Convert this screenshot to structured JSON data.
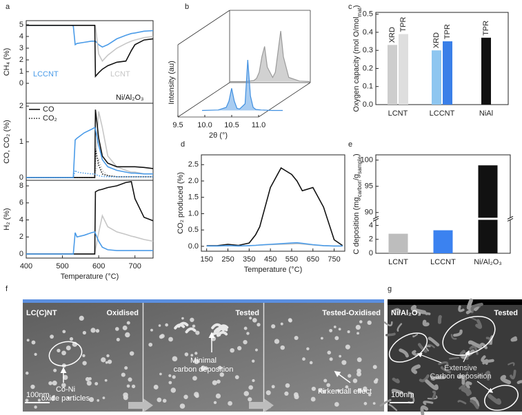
{
  "panel_labels": [
    "a",
    "b",
    "c",
    "d",
    "e",
    "f",
    "g"
  ],
  "chart_data": [
    {
      "type": "line",
      "ylabel": "CH₄ (%)",
      "xlim": [
        400,
        750
      ],
      "ylim": [
        -1.7,
        5.35
      ],
      "yticks": [
        0,
        1,
        2,
        3,
        4,
        5
      ],
      "x": [
        400,
        450,
        500,
        525,
        530,
        535,
        540,
        560,
        580,
        589,
        591,
        600,
        610,
        625,
        650,
        675,
        690,
        700,
        725,
        750
      ],
      "series": [
        {
          "name": "LCCNT",
          "color": "#4a9be8",
          "values": [
            4.95,
            4.95,
            4.95,
            4.95,
            4.9,
            3.3,
            3.4,
            3.5,
            3.6,
            3.6,
            3.6,
            3.3,
            3.1,
            3.3,
            3.8,
            4.1,
            4.25,
            4.3,
            4.45,
            4.5
          ]
        },
        {
          "name": "LCNT",
          "color": "#c6c6c6",
          "values": [
            4.95,
            4.95,
            4.95,
            4.95,
            4.95,
            4.95,
            4.95,
            4.95,
            4.95,
            4.95,
            4.9,
            2.5,
            1.9,
            2.4,
            3.0,
            3.4,
            3.6,
            3.7,
            3.9,
            4.0
          ]
        },
        {
          "name": "Ni/Al₂O₃",
          "color": "#111111",
          "values": [
            4.95,
            4.95,
            4.95,
            4.95,
            4.95,
            4.95,
            4.95,
            4.95,
            4.95,
            4.95,
            0.6,
            0.9,
            1.2,
            1.5,
            1.8,
            1.9,
            2.8,
            3.3,
            3.7,
            3.8
          ]
        }
      ]
    },
    {
      "type": "line",
      "ylabel": "CO, CO₂ (%)",
      "xlim": [
        400,
        750
      ],
      "ylim": [
        -0.08,
        2.08
      ],
      "yticks": [
        0,
        1,
        2
      ],
      "legend": [
        {
          "label": "CO",
          "dash": "solid"
        },
        {
          "label": "CO₂",
          "dash": "dotted"
        }
      ],
      "x": [
        400,
        450,
        500,
        525,
        530,
        535,
        540,
        560,
        580,
        589,
        591,
        600,
        610,
        625,
        650,
        675,
        690,
        700,
        725,
        750
      ],
      "series": [
        {
          "color": "#c6c6c6",
          "dash": "solid",
          "values": [
            0,
            0,
            0,
            0,
            0,
            0,
            0,
            0,
            0,
            0,
            0.3,
            1.85,
            1.4,
            0.6,
            0.3,
            0.2,
            0.15,
            0.15,
            0.1,
            0.1
          ]
        },
        {
          "color": "#111111",
          "dash": "solid",
          "values": [
            0,
            0,
            0,
            0,
            0,
            0,
            0,
            0,
            0,
            0,
            1.9,
            1.1,
            0.6,
            0.4,
            0.3,
            0.3,
            0.3,
            0.3,
            0.28,
            0.25
          ]
        },
        {
          "color": "#4a9be8",
          "dash": "solid",
          "values": [
            0,
            0,
            0,
            0,
            0,
            1.05,
            1.1,
            1.25,
            1.35,
            1.4,
            1.35,
            0.9,
            0.5,
            0.3,
            0.2,
            0.15,
            0.12,
            0.12,
            0.1,
            0.1
          ]
        },
        {
          "color": "#c6c6c6",
          "dash": "dotted",
          "values": [
            0,
            0,
            0,
            0,
            0,
            0,
            0,
            0,
            0,
            0,
            0.1,
            0.5,
            0.2,
            0.05,
            0.02,
            0.02,
            0.02,
            0.02,
            0.02,
            0.02
          ]
        },
        {
          "color": "#111111",
          "dash": "dotted",
          "values": [
            0,
            0,
            0,
            0,
            0,
            0,
            0,
            0,
            0,
            0,
            0.8,
            0.35,
            0.1,
            0.05,
            0.02,
            0.02,
            0.02,
            0.02,
            0.02,
            0.02
          ]
        },
        {
          "color": "#4a9be8",
          "dash": "dotted",
          "values": [
            0,
            0,
            0,
            0,
            0,
            0.2,
            0.15,
            0.12,
            0.1,
            0.1,
            0.08,
            0.05,
            0.03,
            0.02,
            0.02,
            0.02,
            0.02,
            0.02,
            0.02,
            0.02
          ]
        }
      ]
    },
    {
      "type": "line",
      "ylabel": "H₂ (%)",
      "xlabel": "Temperature (°C)",
      "xlim": [
        400,
        750
      ],
      "xticks": [
        400,
        500,
        600,
        700
      ],
      "ylim": [
        -0.48,
        8.65
      ],
      "yticks": [
        0,
        2,
        4,
        6,
        8
      ],
      "x": [
        400,
        450,
        500,
        525,
        530,
        535,
        540,
        560,
        580,
        589,
        591,
        600,
        610,
        625,
        650,
        675,
        690,
        700,
        725,
        750
      ],
      "series": [
        {
          "color": "#c6c6c6",
          "values": [
            0,
            0,
            0,
            0,
            0,
            0,
            0,
            0,
            0,
            0,
            0.5,
            2.5,
            4.5,
            3.2,
            2.6,
            2.3,
            2.1,
            2.0,
            1.7,
            1.5
          ]
        },
        {
          "color": "#111111",
          "values": [
            0,
            0,
            0,
            0,
            0,
            0,
            0,
            0,
            0,
            0,
            7.3,
            7.5,
            7.6,
            7.8,
            8.0,
            8.4,
            8.5,
            6.5,
            4.3,
            3.9
          ]
        },
        {
          "color": "#4a9be8",
          "values": [
            0,
            0,
            0,
            0,
            0,
            2.5,
            2.0,
            2.2,
            2.5,
            2.6,
            2.4,
            1.5,
            0.8,
            0.5,
            0.4,
            0.4,
            0.4,
            0.4,
            0.4,
            0.4
          ]
        }
      ]
    },
    {
      "type": "waterfall",
      "ylabel": "Intensity (au)",
      "xlabel": "2θ (°)",
      "xlim": [
        9.5,
        11.0
      ],
      "ylim": [
        0,
        1
      ],
      "xticks": [
        9.5,
        {
          "value": 10,
          "label": "10.0"
        },
        10.5,
        {
          "value": 11,
          "label": "11.0"
        }
      ],
      "x": [
        9.5,
        9.8,
        9.95,
        10.0,
        10.05,
        10.1,
        10.15,
        10.2,
        10.3,
        10.35,
        10.4,
        10.45,
        10.5,
        10.6,
        10.8,
        11.0
      ],
      "series": [
        {
          "color": "#3f8fe0",
          "values": [
            0.02,
            0.03,
            0.08,
            0.2,
            0.45,
            0.2,
            0.06,
            0.05,
            0.15,
            1.0,
            0.3,
            0.08,
            0.04,
            0.03,
            0.02,
            0.02
          ]
        },
        {
          "color": "#9a9a9a",
          "values": [
            0.02,
            0.02,
            0.04,
            0.08,
            0.2,
            0.5,
            0.7,
            0.3,
            0.1,
            0.2,
            0.6,
            1.0,
            0.5,
            0.1,
            0.03,
            0.02
          ]
        }
      ]
    },
    {
      "type": "bar",
      "ylabel": [
        "Oxygen capacity (mol O/mol",
        "mat",
        ")"
      ],
      "ylim": [
        0,
        0.51
      ],
      "yticks": [
        {
          "value": 0,
          "label": "0.0"
        },
        0.1,
        0.2,
        0.3,
        0.4,
        0.5
      ],
      "categories": [
        "LCNT",
        "LCCNT",
        "NiAl"
      ],
      "series": [
        {
          "name": "XRD",
          "colors": [
            "#cdcdcd",
            "#8ec6f0",
            null
          ],
          "values": [
            0.33,
            0.3,
            null
          ]
        },
        {
          "name": "TPR",
          "colors": [
            "#dedede",
            "#3a7fe8",
            "#111111"
          ],
          "values": [
            0.39,
            0.35,
            0.37
          ]
        }
      ]
    },
    {
      "type": "line",
      "ylabel": "CO₂ produced (%)",
      "xlabel": "Temperature (°C)",
      "xlim": [
        125,
        800
      ],
      "ylim": [
        -0.15,
        2.8
      ],
      "xticks": [
        150,
        250,
        350,
        450,
        550,
        650,
        750
      ],
      "yticks": [
        {
          "value": 0,
          "label": "0.0"
        },
        0.5,
        {
          "value": 1,
          "label": "1.0"
        },
        1.5,
        {
          "value": 2,
          "label": "2.0"
        },
        2.5
      ],
      "x": [
        150,
        200,
        250,
        300,
        350,
        380,
        400,
        450,
        500,
        550,
        575,
        600,
        650,
        700,
        750,
        790
      ],
      "series": [
        {
          "color": "#111111",
          "values": [
            0.02,
            0.02,
            0.06,
            0.03,
            0.1,
            0.35,
            0.6,
            1.8,
            2.4,
            2.2,
            2.0,
            1.7,
            1.8,
            1.2,
            0.2,
            0.02
          ]
        },
        {
          "color": "#c6c6c6",
          "values": [
            0.01,
            0.01,
            0.02,
            0.01,
            0.02,
            0.03,
            0.04,
            0.05,
            0.06,
            0.07,
            0.08,
            0.07,
            0.04,
            0.02,
            0.01,
            0.01
          ]
        },
        {
          "color": "#4a9be8",
          "values": [
            0.01,
            0.01,
            0.02,
            0.01,
            0.02,
            0.03,
            0.04,
            0.06,
            0.08,
            0.1,
            0.11,
            0.09,
            0.05,
            0.02,
            0.01,
            0.01
          ]
        }
      ]
    },
    {
      "type": "bar",
      "ylabel": [
        "C deposition (mg",
        "carbon",
        "/g",
        "sample",
        ")"
      ],
      "ylim": [
        0,
        101
      ],
      "ybreak": [
        4.8,
        89
      ],
      "yticks": [
        0,
        2,
        4,
        90,
        95,
        100
      ],
      "categories": [
        "LCNT",
        "LCCNT",
        "Ni/Al₂O₃"
      ],
      "colors": [
        "#bdbdbd",
        "#3b82f0",
        "#111111"
      ],
      "values": [
        2.8,
        3.3,
        99
      ]
    }
  ],
  "micrographs": {
    "f": {
      "sample": "LC(C)NT",
      "scale": "100nm",
      "panels": [
        {
          "state": "Oxidised",
          "note": [
            "Co-Ni",
            "oxide particles"
          ]
        },
        {
          "state": "Tested",
          "note": [
            "Minimal",
            "carbon deposition"
          ]
        },
        {
          "state": "Tested-Oxidised",
          "note": [
            "Kirkendall effect"
          ]
        }
      ]
    },
    "g": {
      "sample": "Ni/Al₂O₃",
      "state": "Tested",
      "note": [
        "Extensive",
        "Carbon deposition"
      ],
      "scale": "100nm"
    }
  }
}
